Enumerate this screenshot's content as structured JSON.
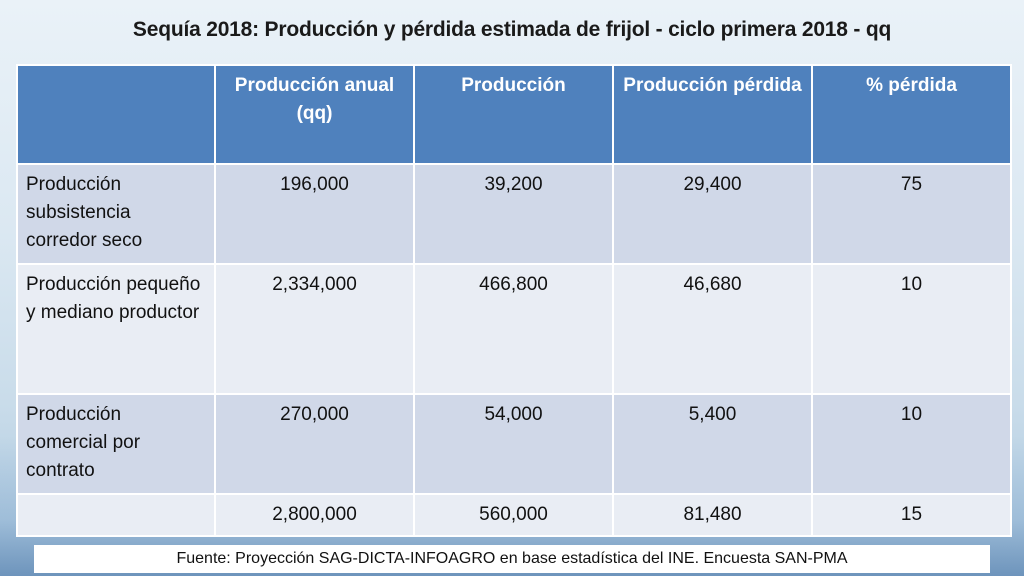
{
  "title": "Sequía 2018: Producción y pérdida estimada de frijol - ciclo primera 2018 - qq",
  "table": {
    "headers": [
      "",
      "Producción anual (qq)",
      "Producción",
      "Producción pérdida",
      "% pérdida"
    ],
    "rows": [
      {
        "label": "Producción subsistencia corredor seco",
        "values": [
          "196,000",
          "39,200",
          "29,400",
          "75"
        ]
      },
      {
        "label": "Producción pequeño y mediano productor",
        "values": [
          "2,334,000",
          "466,800",
          "46,680",
          "10"
        ]
      },
      {
        "label": "Producción comercial por contrato",
        "values": [
          "270,000",
          "54,000",
          "5,400",
          "10"
        ]
      },
      {
        "label": "",
        "values": [
          "2,800,000",
          "560,000",
          "81,480",
          "15"
        ]
      }
    ]
  },
  "footer": "Fuente: Proyección SAG-DICTA-INFOAGRO en base estadística del INE. Encuesta SAN-PMA",
  "colors": {
    "header_bg": "#4f81bd",
    "row_dark": "#d0d8e8",
    "row_light": "#e9edf4"
  }
}
